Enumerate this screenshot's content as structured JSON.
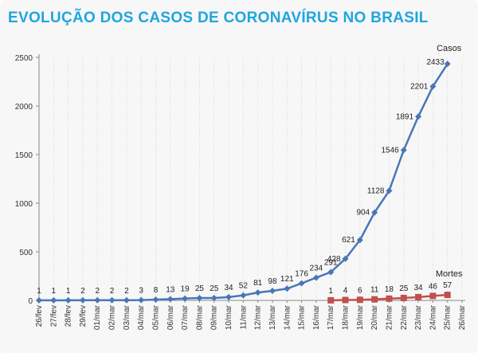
{
  "title": "EVOLUÇÃO DOS CASOS DE CORONAVÍRUS NO BRASIL",
  "colors": {
    "title": "#1fa6de",
    "casos": "#4a76b8",
    "mortes": "#c0504d",
    "grid": "#dddddd",
    "axis": "#888888"
  },
  "chart_data": {
    "type": "line",
    "categories": [
      "26/fev",
      "27/fev",
      "28/fev",
      "29/fev",
      "01/mar",
      "02/mar",
      "03/mar",
      "04/mar",
      "05/mar",
      "06/mar",
      "07/mar",
      "08/mar",
      "09/mar",
      "10/mar",
      "11/mar",
      "12/mar",
      "13/mar",
      "14/mar",
      "15/mar",
      "16/mar",
      "17/mar",
      "18/mar",
      "19/mar",
      "20/mar",
      "21/mar",
      "22/mar",
      "23/mar",
      "24/mar",
      "25/mar",
      "26/mar"
    ],
    "series": [
      {
        "name": "Casos",
        "color": "#4a76b8",
        "marker": "diamond",
        "values": [
          1,
          1,
          1,
          2,
          2,
          2,
          2,
          3,
          8,
          13,
          19,
          25,
          25,
          34,
          52,
          81,
          98,
          121,
          176,
          234,
          291,
          428,
          621,
          904,
          1128,
          1546,
          1891,
          2201,
          2433,
          null
        ]
      },
      {
        "name": "Mortes",
        "color": "#c0504d",
        "marker": "square",
        "values": [
          null,
          null,
          null,
          null,
          null,
          null,
          null,
          null,
          null,
          null,
          null,
          null,
          null,
          null,
          null,
          null,
          null,
          null,
          null,
          null,
          1,
          4,
          6,
          11,
          18,
          25,
          34,
          46,
          57,
          null
        ]
      }
    ],
    "ylim": [
      0,
      2500
    ],
    "yticks": [
      "0",
      "500",
      "1000",
      "1500",
      "2000",
      "2500"
    ],
    "xlabel": "",
    "ylabel": "",
    "grid": "vertical dashed at data points",
    "legend": "series names labeled at line ends"
  }
}
